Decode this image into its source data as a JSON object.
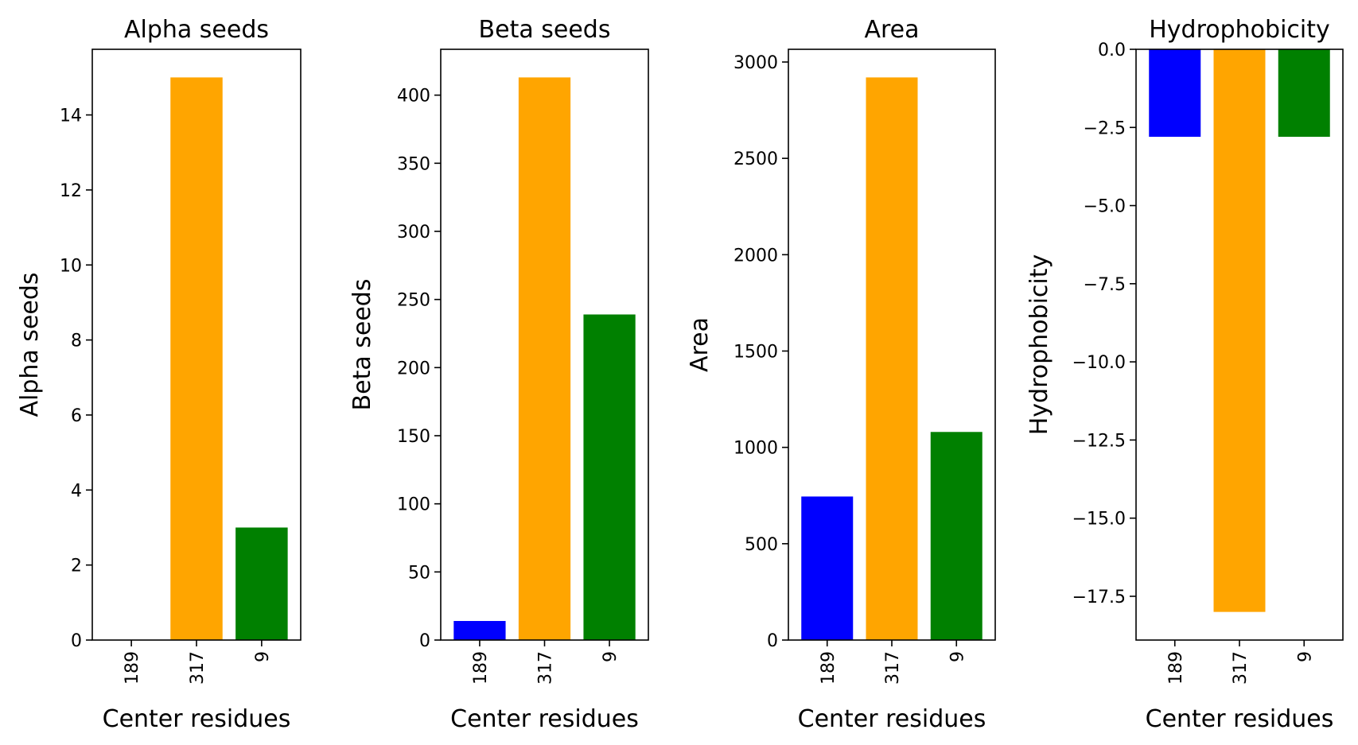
{
  "colors": {
    "series": [
      "#0000ff",
      "#ffa500",
      "#008000"
    ],
    "axes": "#000000",
    "background": "#ffffff"
  },
  "chart_data": [
    {
      "type": "bar",
      "title": "Alpha seeds",
      "xlabel": "Center residues",
      "ylabel": "Alpha seeds",
      "categories": [
        "189",
        "317",
        "9"
      ],
      "values": [
        0,
        15,
        3
      ],
      "ylim": [
        0,
        15.75
      ],
      "yticks": [
        0,
        2,
        4,
        6,
        8,
        10,
        12,
        14
      ],
      "ytick_labels": [
        "0",
        "2",
        "4",
        "6",
        "8",
        "10",
        "12",
        "14"
      ],
      "grid": false,
      "legend": "none"
    },
    {
      "type": "bar",
      "title": "Beta seeds",
      "xlabel": "Center residues",
      "ylabel": "Beta seeds",
      "categories": [
        "189",
        "317",
        "9"
      ],
      "values": [
        14,
        413,
        239
      ],
      "ylim": [
        0,
        433.65
      ],
      "yticks": [
        0,
        50,
        100,
        150,
        200,
        250,
        300,
        350,
        400
      ],
      "ytick_labels": [
        "0",
        "50",
        "100",
        "150",
        "200",
        "250",
        "300",
        "350",
        "400"
      ],
      "grid": false,
      "legend": "none"
    },
    {
      "type": "bar",
      "title": "Area",
      "xlabel": "Center residues",
      "ylabel": "Area",
      "categories": [
        "189",
        "317",
        "9"
      ],
      "values": [
        745,
        2920,
        1080
      ],
      "ylim": [
        0,
        3066
      ],
      "yticks": [
        0,
        500,
        1000,
        1500,
        2000,
        2500,
        3000
      ],
      "ytick_labels": [
        "0",
        "500",
        "1000",
        "1500",
        "2000",
        "2500",
        "3000"
      ],
      "grid": false,
      "legend": "none"
    },
    {
      "type": "bar",
      "title": "Hydrophobicity",
      "xlabel": "Center residues",
      "ylabel": "Hydrophobicity",
      "categories": [
        "189",
        "317",
        "9"
      ],
      "values": [
        -2.8,
        -18.0,
        -2.8
      ],
      "ylim": [
        -18.9,
        0
      ],
      "yticks": [
        0,
        -2.5,
        -5,
        -7.5,
        -10,
        -12.5,
        -15,
        -17.5
      ],
      "ytick_labels": [
        "0.0",
        "−2.5",
        "−5.0",
        "−7.5",
        "−10.0",
        "−12.5",
        "−15.0",
        "−17.5"
      ],
      "grid": false,
      "legend": "none"
    }
  ]
}
